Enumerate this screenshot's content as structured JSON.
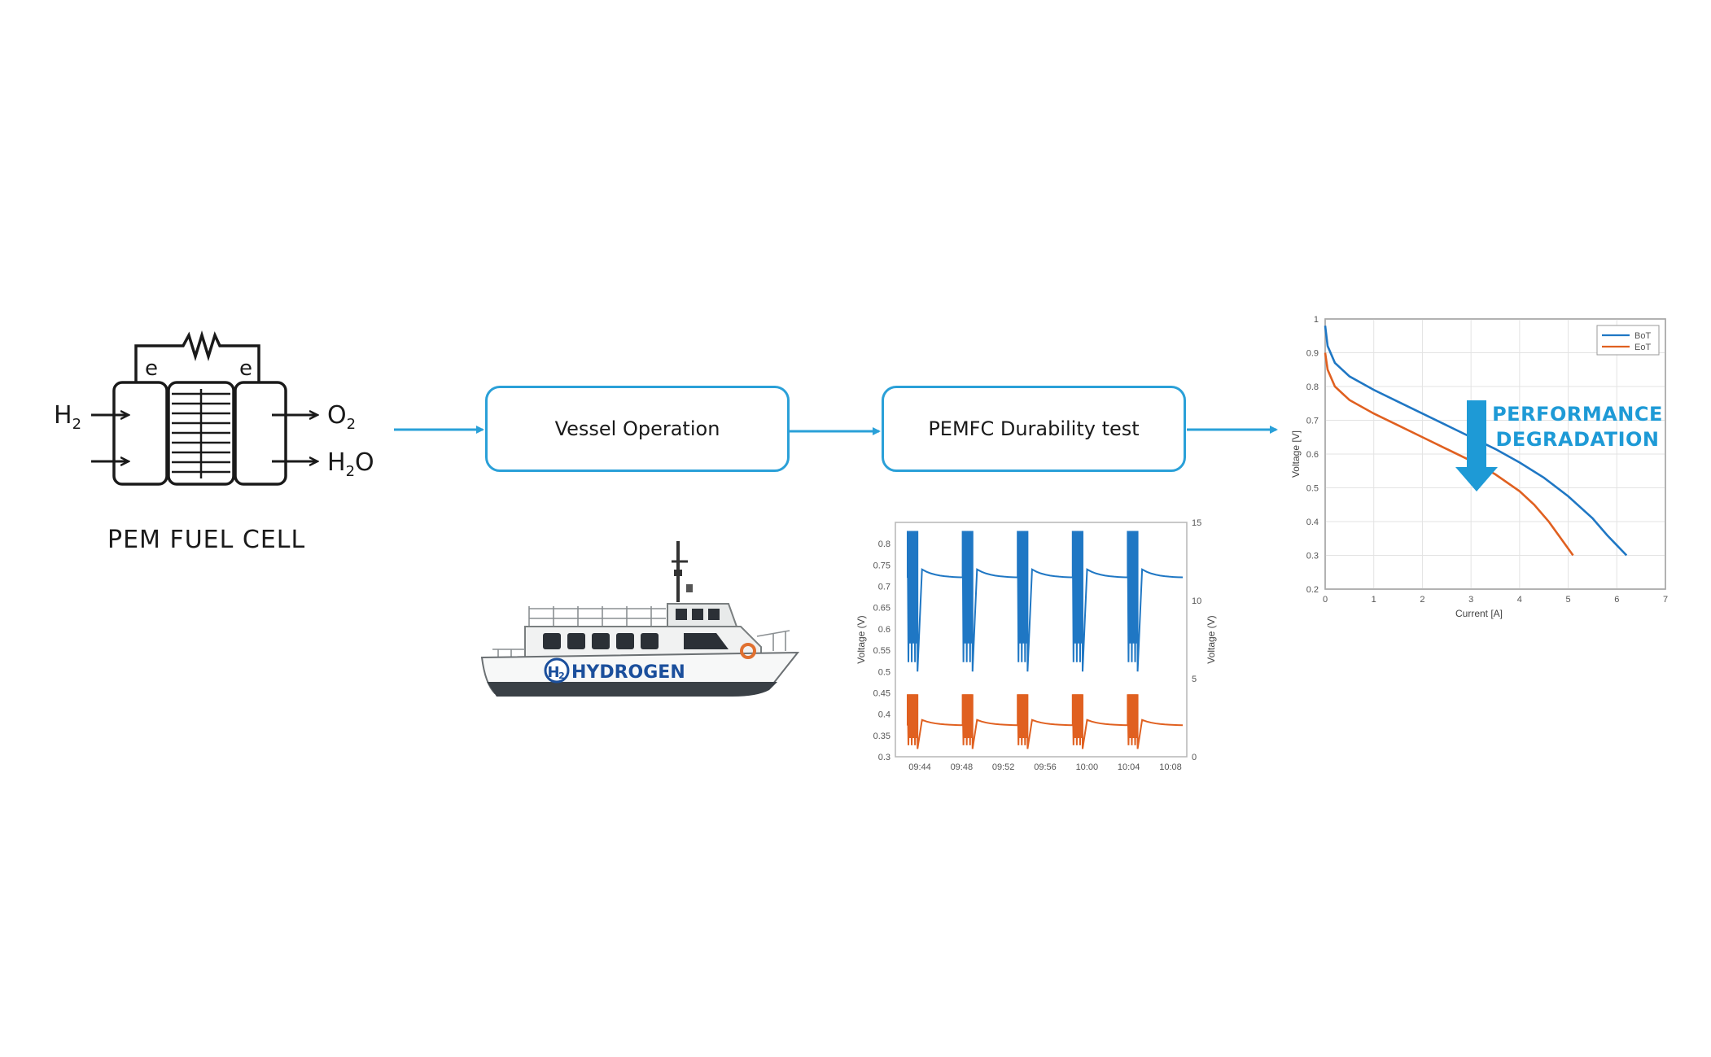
{
  "fuel_cell": {
    "label": "PEM FUEL CELL",
    "electron_left": "e",
    "electron_right": "e",
    "inputs": [
      {
        "main": "H",
        "sub": "2",
        "tail": ""
      }
    ],
    "outputs": [
      {
        "main": "O",
        "sub": "2",
        "tail": ""
      },
      {
        "main": "H",
        "sub": "2",
        "tail": "O"
      }
    ]
  },
  "flow": {
    "step1": "Vessel Operation",
    "step2": "PEMFC Durability test",
    "accent": "#2aa0d8"
  },
  "vessel": {
    "hull_text": "HYDROGEN",
    "badge_main": "H",
    "badge_sub": "2"
  },
  "degradation_label": {
    "line1": "PERFORMANCE",
    "line2": "DEGRADATION"
  },
  "chart_data": [
    {
      "type": "line",
      "xlabel": "",
      "ylabel": "Voltage (V)",
      "y2label": "Voltage (V)",
      "x_ticks": [
        "09:44",
        "09:48",
        "09:52",
        "09:56",
        "10:00",
        "10:04",
        "10:08"
      ],
      "ylim": [
        0.3,
        0.85
      ],
      "y_ticks": [
        "0.3",
        "0.35",
        "0.4",
        "0.45",
        "0.5",
        "0.55",
        "0.6",
        "0.65",
        "0.7",
        "0.75",
        "0.8"
      ],
      "y2lim": [
        0,
        15
      ],
      "y2_ticks": [
        "0",
        "5",
        "10",
        "15"
      ],
      "grid": false,
      "series": [
        {
          "axis": "left",
          "color": "#1f77c4",
          "baseline": 0.72,
          "peak": 0.83,
          "trough": 0.5,
          "cycle_count": 5
        },
        {
          "axis": "right",
          "color": "#e06020",
          "baseline": 2.0,
          "peak": 4.0,
          "trough": 0.5,
          "cycle_count": 5
        }
      ]
    },
    {
      "type": "line",
      "xlabel": "Current [A]",
      "ylabel": "Voltage [V]",
      "xlim": [
        0,
        7
      ],
      "ylim": [
        0.2,
        1.0
      ],
      "x_ticks": [
        "0",
        "1",
        "2",
        "3",
        "4",
        "5",
        "6",
        "7"
      ],
      "y_ticks": [
        "0.2",
        "0.3",
        "0.4",
        "0.5",
        "0.6",
        "0.7",
        "0.8",
        "0.9",
        "1"
      ],
      "grid": true,
      "legend_position": "top-right",
      "series": [
        {
          "name": "BoT",
          "color": "#1f77c4",
          "x": [
            0,
            0.05,
            0.2,
            0.5,
            1,
            1.5,
            2,
            2.5,
            3,
            3.5,
            4,
            4.5,
            5,
            5.5,
            5.8,
            6,
            6.2
          ],
          "y": [
            0.98,
            0.92,
            0.87,
            0.83,
            0.79,
            0.755,
            0.72,
            0.685,
            0.65,
            0.615,
            0.575,
            0.53,
            0.475,
            0.41,
            0.36,
            0.33,
            0.3
          ]
        },
        {
          "name": "EoT",
          "color": "#e06020",
          "x": [
            0,
            0.05,
            0.2,
            0.5,
            1,
            1.5,
            2,
            2.5,
            3,
            3.5,
            4,
            4.3,
            4.6,
            4.9,
            5.1
          ],
          "y": [
            0.9,
            0.85,
            0.8,
            0.76,
            0.72,
            0.685,
            0.65,
            0.615,
            0.58,
            0.54,
            0.49,
            0.45,
            0.4,
            0.34,
            0.3
          ]
        }
      ]
    }
  ]
}
